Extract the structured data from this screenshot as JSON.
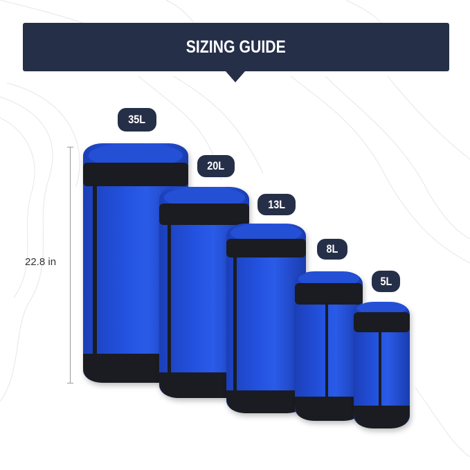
{
  "header": {
    "title": "SIZING GUIDE"
  },
  "colors": {
    "navy": "#252f48",
    "bag_blue": "#2352e0",
    "bag_black": "#1a1c22"
  },
  "dimension": {
    "label": "22.8 in"
  },
  "sizes": [
    {
      "label": "35L"
    },
    {
      "label": "20L"
    },
    {
      "label": "13L"
    },
    {
      "label": "8L"
    },
    {
      "label": "5L"
    }
  ]
}
